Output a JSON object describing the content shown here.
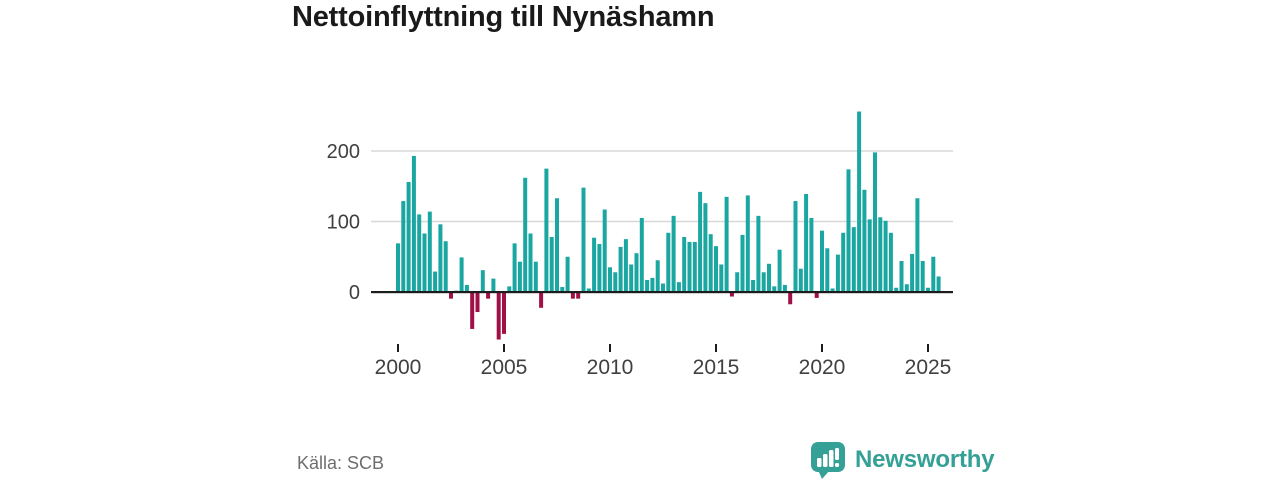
{
  "title": "Nettoinflyttning till Nynäshamn",
  "source": {
    "label": "Källa: SCB"
  },
  "branding": {
    "logo_text": "Newsworthy",
    "logo_icon": "newsworthy-speech-bubble-bar-chart-icon",
    "color": "#35a096"
  },
  "chart_data": {
    "type": "bar",
    "title": "Nettoinflyttning till Nynäshamn",
    "xlabel": "",
    "ylabel": "",
    "x": [
      "2000 K1",
      "2000 K2",
      "2000 K3",
      "2000 K4",
      "2001 K1",
      "2001 K2",
      "2001 K3",
      "2001 K4",
      "2002 K1",
      "2002 K2",
      "2002 K3",
      "2002 K4",
      "2003 K1",
      "2003 K2",
      "2003 K3",
      "2003 K4",
      "2004 K1",
      "2004 K2",
      "2004 K3",
      "2004 K4",
      "2005 K1",
      "2005 K2",
      "2005 K3",
      "2005 K4",
      "2006 K1",
      "2006 K2",
      "2006 K3",
      "2006 K4",
      "2007 K1",
      "2007 K2",
      "2007 K3",
      "2007 K4",
      "2008 K1",
      "2008 K2",
      "2008 K3",
      "2008 K4",
      "2009 K1",
      "2009 K2",
      "2009 K3",
      "2009 K4",
      "2010 K1",
      "2010 K2",
      "2010 K3",
      "2010 K4",
      "2011 K1",
      "2011 K2",
      "2011 K3",
      "2011 K4",
      "2012 K1",
      "2012 K2",
      "2012 K3",
      "2012 K4",
      "2013 K1",
      "2013 K2",
      "2013 K3",
      "2013 K4",
      "2014 K1",
      "2014 K2",
      "2014 K3",
      "2014 K4",
      "2015 K1",
      "2015 K2",
      "2015 K3",
      "2015 K4",
      "2016 K1",
      "2016 K2",
      "2016 K3",
      "2016 K4",
      "2017 K1",
      "2017 K2",
      "2017 K3",
      "2017 K4",
      "2018 K1",
      "2018 K2",
      "2018 K3",
      "2018 K4",
      "2019 K1",
      "2019 K2",
      "2019 K3",
      "2019 K4",
      "2020 K1",
      "2020 K2",
      "2020 K3",
      "2020 K4",
      "2021 K1",
      "2021 K2",
      "2021 K3",
      "2021 K4",
      "2022 K1",
      "2022 K2",
      "2022 K3",
      "2022 K4",
      "2023 K1",
      "2023 K2",
      "2023 K3",
      "2023 K4",
      "2024 K1",
      "2024 K2",
      "2024 K3",
      "2024 K4",
      "2025 K1",
      "2025 K2",
      "2025 K3"
    ],
    "values": [
      69,
      129,
      156,
      193,
      110,
      83,
      114,
      29,
      96,
      72,
      -8,
      2,
      49,
      10,
      -51,
      -27,
      31,
      -8,
      19,
      -66,
      -58,
      8,
      69,
      43,
      162,
      83,
      43,
      -21,
      175,
      78,
      133,
      7,
      50,
      -8,
      -8,
      148,
      5,
      77,
      68,
      117,
      35,
      28,
      64,
      75,
      39,
      55,
      105,
      17,
      20,
      45,
      12,
      84,
      108,
      14,
      78,
      71,
      71,
      142,
      126,
      82,
      65,
      39,
      135,
      -5,
      28,
      81,
      137,
      17,
      108,
      28,
      40,
      8,
      60,
      10,
      -16,
      129,
      33,
      139,
      105,
      -7,
      87,
      62,
      5,
      53,
      84,
      174,
      92,
      256,
      145,
      103,
      198,
      106,
      101,
      84,
      6,
      44,
      11,
      54,
      133,
      44,
      6,
      50,
      22
    ],
    "xticks": [
      {
        "label": "2000",
        "quarter_index": 0
      },
      {
        "label": "2005",
        "quarter_index": 20
      },
      {
        "label": "2010",
        "quarter_index": 40
      },
      {
        "label": "2015",
        "quarter_index": 60
      },
      {
        "label": "2020",
        "quarter_index": 80
      },
      {
        "label": "2025",
        "quarter_index": 100
      }
    ],
    "yticks": [
      0,
      100,
      200
    ],
    "ylim": [
      -80,
      270
    ],
    "grid": "horizontal",
    "legend": "none",
    "positive_color": "#1aa6a1",
    "negative_color": "#a01047",
    "grid_color": "#d8d8d8",
    "axis_color": "#1c1c1c",
    "tick_text_color": "#404040"
  }
}
